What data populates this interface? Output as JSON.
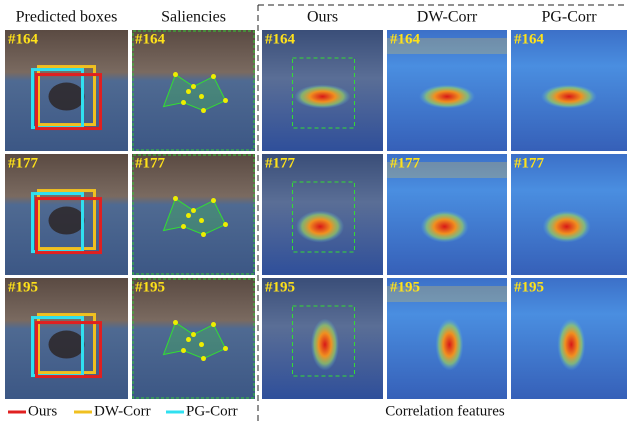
{
  "headers": [
    "Predicted boxes",
    "Saliencies",
    "Ours",
    "DW-Corr",
    "PG-Corr"
  ],
  "frames": [
    "#164",
    "#177",
    "#195"
  ],
  "legend": [
    {
      "label": "Ours",
      "color": "#e02020"
    },
    {
      "label": "DW-Corr",
      "color": "#f0c020"
    },
    {
      "label": "PG-Corr",
      "color": "#30e0f0"
    }
  ],
  "caption": "Correlation features"
}
